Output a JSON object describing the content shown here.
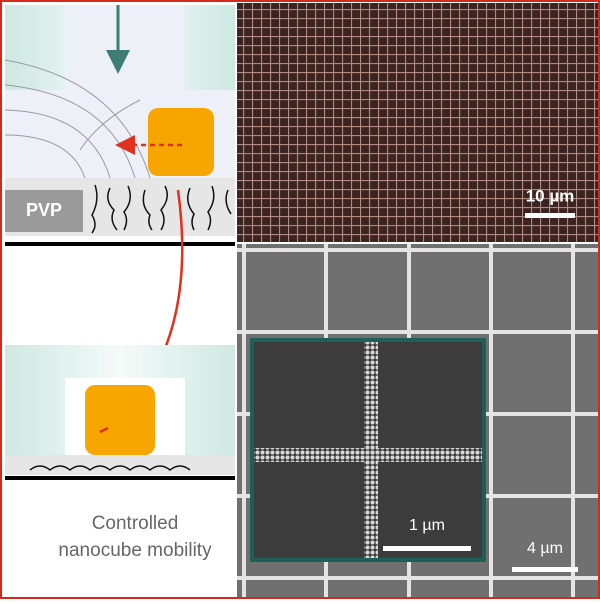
{
  "labels": {
    "pvp": "PVP",
    "scale_top": "10 µm",
    "caption": [
      "Controlled",
      "nanocube mobility"
    ],
    "scale_inset": "1 µm",
    "scale_bottom": "4 µm"
  }
}
